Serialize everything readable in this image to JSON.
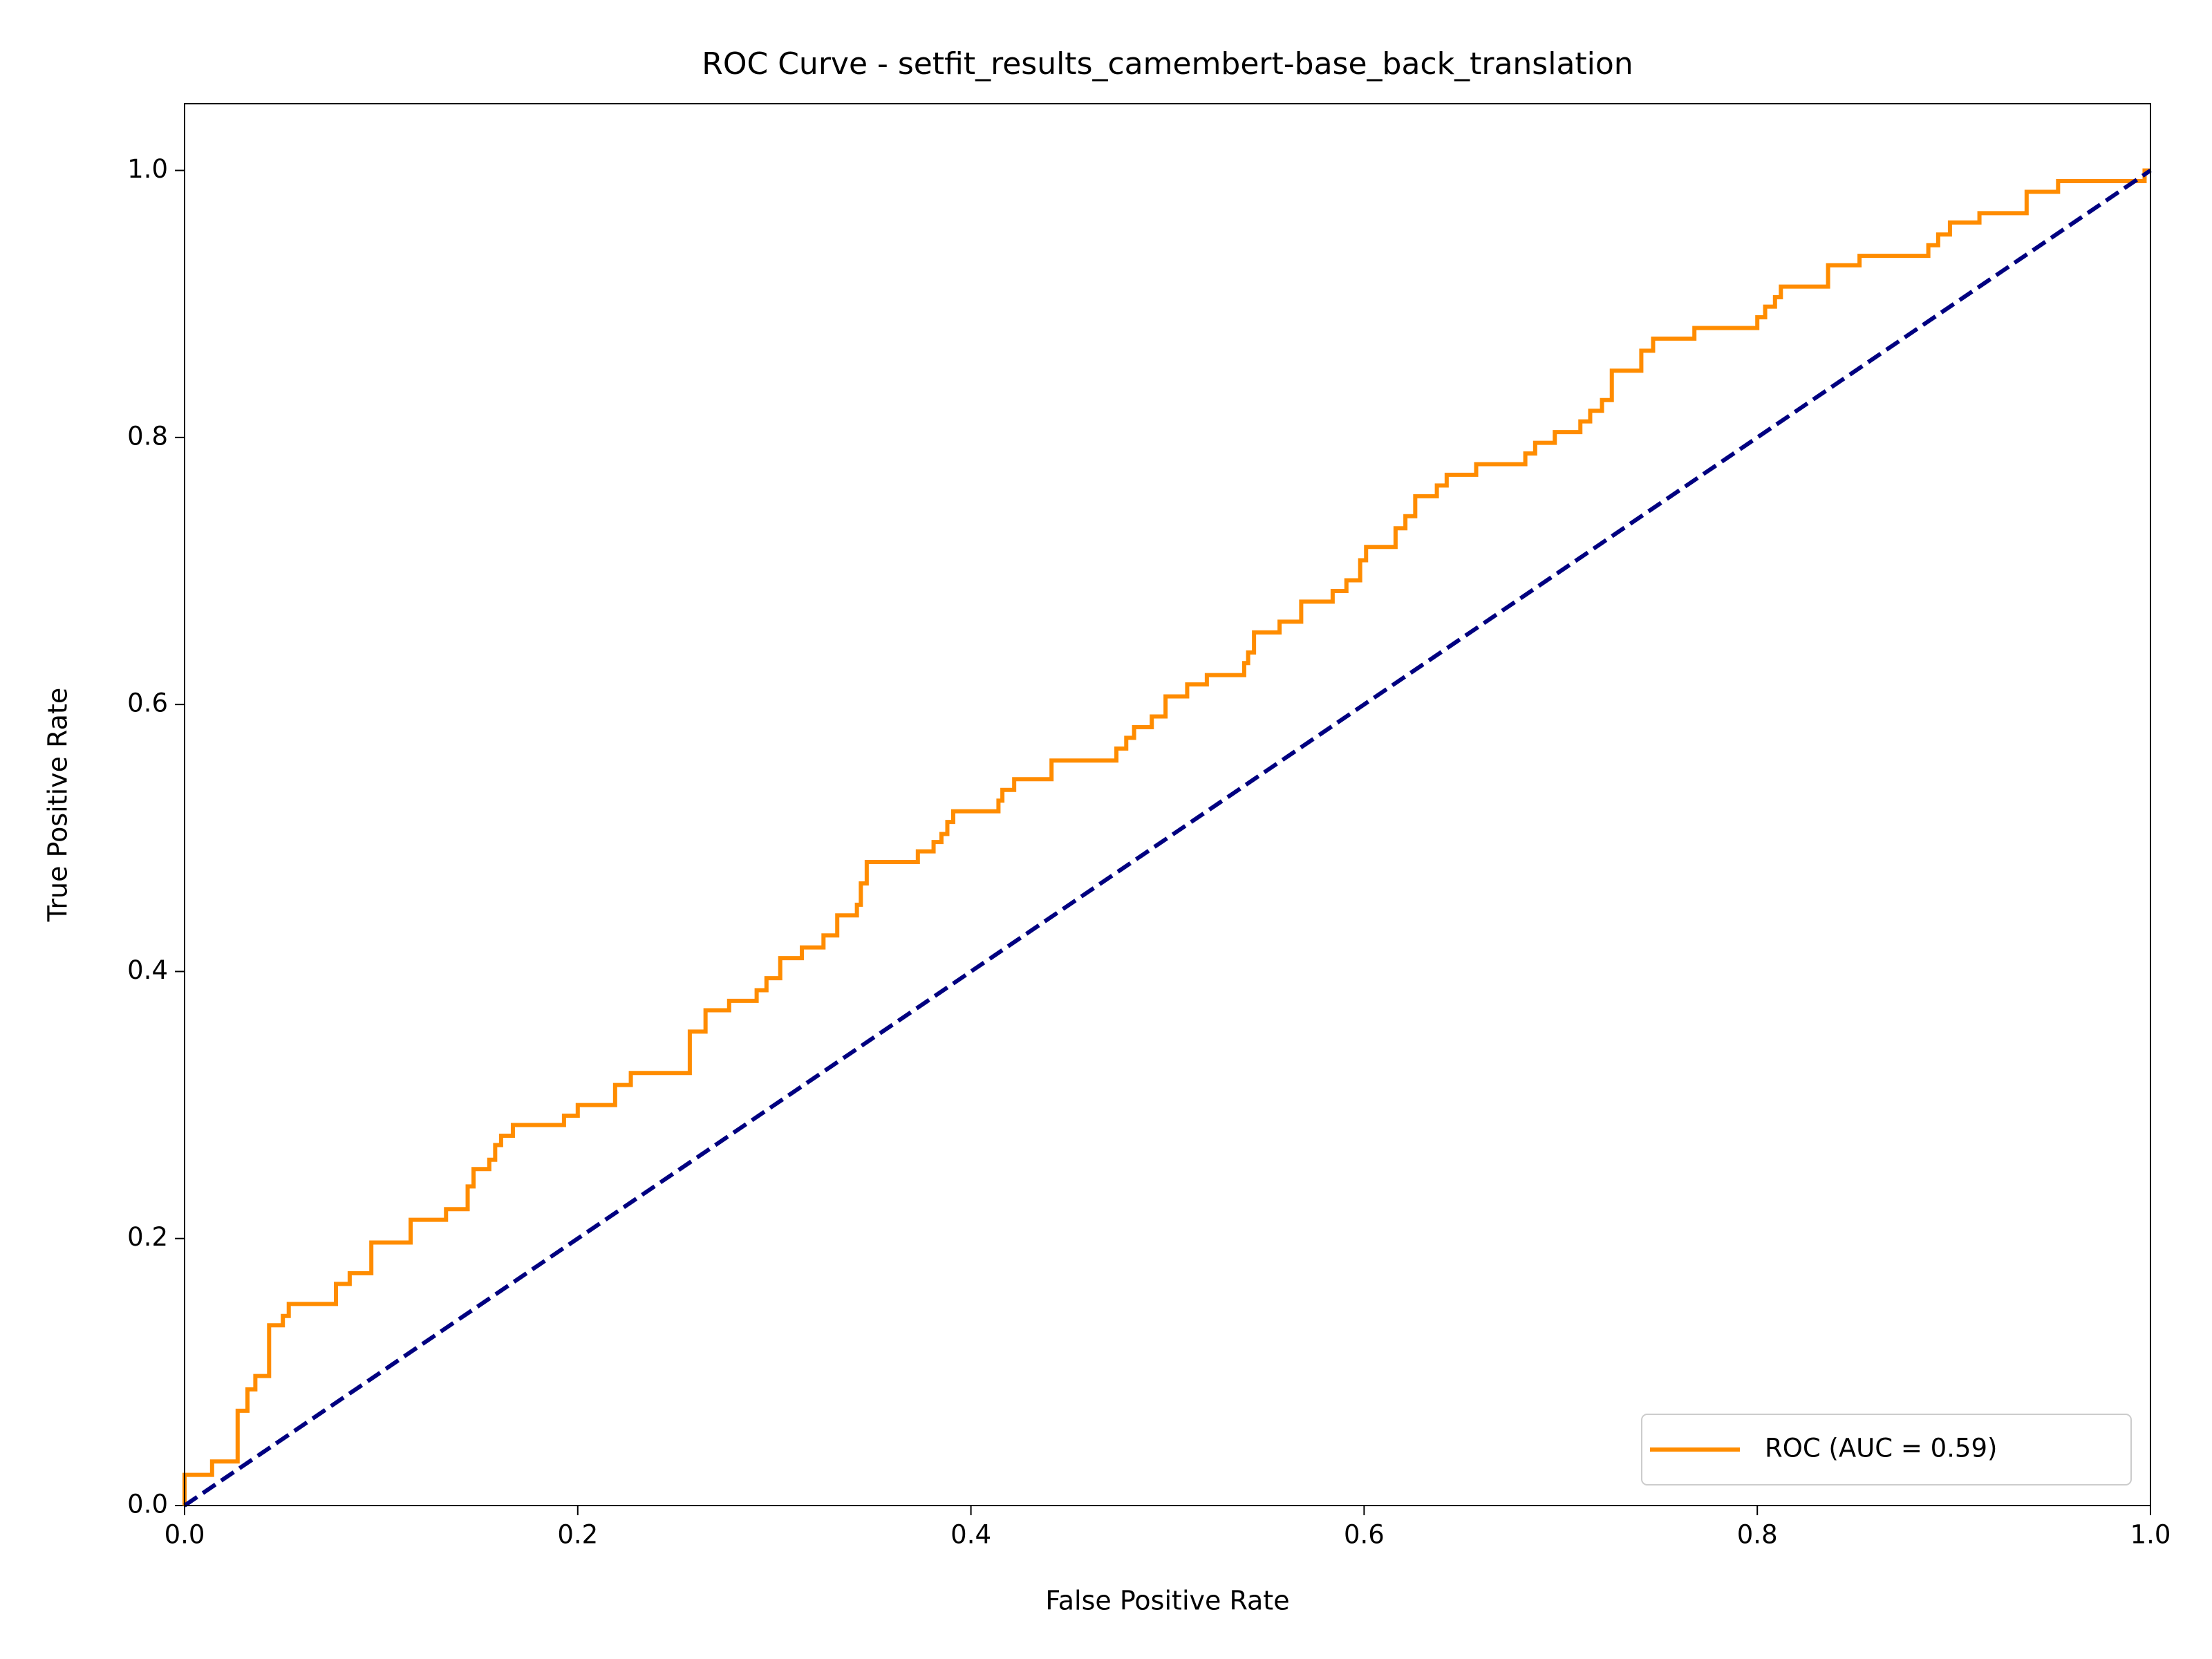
{
  "chart_data": {
    "type": "line",
    "title": "ROC Curve - setfit_results_camembert-base_back_translation",
    "xlabel": "False Positive Rate",
    "ylabel": "True Positive Rate",
    "xlim": [
      0,
      1
    ],
    "ylim": [
      0,
      1.05
    ],
    "xticks": [
      {
        "value": 0,
        "label": "0.0"
      },
      0.2,
      0.4,
      0.6,
      0.8,
      {
        "value": 1,
        "label": "1.0"
      }
    ],
    "yticks": [
      {
        "value": 0,
        "label": "0.0"
      },
      0.2,
      0.4,
      0.6,
      0.8,
      {
        "value": 1,
        "label": "1.0"
      }
    ],
    "legend": "lower right",
    "series": [
      {
        "name": "ROC (AUC = 0.59)",
        "color": "#ff8c00",
        "linestyle": "solid",
        "x": [
          0,
          0,
          0.014,
          0.014,
          0.027,
          0.027,
          0.032,
          0.032,
          0.036,
          0.036,
          0.043,
          0.043,
          0.05,
          0.05,
          0.053,
          0.053,
          0.077,
          0.077,
          0.084,
          0.084,
          0.095,
          0.095,
          0.115,
          0.115,
          0.133,
          0.133,
          0.144,
          0.144,
          0.147,
          0.147,
          0.155,
          0.155,
          0.158,
          0.158,
          0.161,
          0.161,
          0.167,
          0.167,
          0.193,
          0.193,
          0.2,
          0.2,
          0.219,
          0.219,
          0.227,
          0.227,
          0.257,
          0.257,
          0.265,
          0.265,
          0.277,
          0.277,
          0.291,
          0.291,
          0.296,
          0.296,
          0.303,
          0.303,
          0.314,
          0.314,
          0.325,
          0.325,
          0.332,
          0.332,
          0.342,
          0.342,
          0.344,
          0.344,
          0.347,
          0.347,
          0.373,
          0.373,
          0.381,
          0.381,
          0.385,
          0.385,
          0.388,
          0.388,
          0.391,
          0.391,
          0.414,
          0.414,
          0.416,
          0.416,
          0.422,
          0.422,
          0.441,
          0.441,
          0.474,
          0.474,
          0.479,
          0.479,
          0.483,
          0.483,
          0.492,
          0.492,
          0.499,
          0.499,
          0.51,
          0.51,
          0.52,
          0.52,
          0.539,
          0.539,
          0.541,
          0.541,
          0.544,
          0.544,
          0.557,
          0.557,
          0.568,
          0.568,
          0.584,
          0.584,
          0.591,
          0.591,
          0.598,
          0.598,
          0.601,
          0.601,
          0.616,
          0.616,
          0.621,
          0.621,
          0.626,
          0.626,
          0.637,
          0.637,
          0.642,
          0.642,
          0.657,
          0.657,
          0.682,
          0.682,
          0.687,
          0.687,
          0.697,
          0.697,
          0.71,
          0.71,
          0.715,
          0.715,
          0.721,
          0.721,
          0.726,
          0.726,
          0.741,
          0.741,
          0.747,
          0.747,
          0.768,
          0.768,
          0.8,
          0.8,
          0.804,
          0.804,
          0.809,
          0.809,
          0.812,
          0.812,
          0.836,
          0.836,
          0.852,
          0.852,
          0.887,
          0.887,
          0.892,
          0.892,
          0.898,
          0.898,
          0.913,
          0.913,
          0.937,
          0.937,
          0.953,
          0.953,
          0.997,
          0.997,
          1
        ],
        "values": [
          0,
          0.023,
          0.023,
          0.033,
          0.033,
          0.071,
          0.071,
          0.087,
          0.087,
          0.097,
          0.097,
          0.135,
          0.135,
          0.142,
          0.142,
          0.151,
          0.151,
          0.166,
          0.166,
          0.174,
          0.174,
          0.197,
          0.197,
          0.214,
          0.214,
          0.222,
          0.222,
          0.239,
          0.239,
          0.252,
          0.252,
          0.259,
          0.259,
          0.27,
          0.27,
          0.277,
          0.277,
          0.285,
          0.285,
          0.292,
          0.292,
          0.3,
          0.3,
          0.315,
          0.315,
          0.324,
          0.324,
          0.355,
          0.355,
          0.371,
          0.371,
          0.378,
          0.378,
          0.386,
          0.386,
          0.395,
          0.395,
          0.41,
          0.41,
          0.418,
          0.418,
          0.427,
          0.427,
          0.442,
          0.442,
          0.45,
          0.45,
          0.466,
          0.466,
          0.482,
          0.482,
          0.49,
          0.49,
          0.497,
          0.497,
          0.503,
          0.503,
          0.512,
          0.512,
          0.52,
          0.52,
          0.528,
          0.528,
          0.536,
          0.536,
          0.544,
          0.544,
          0.558,
          0.558,
          0.567,
          0.567,
          0.575,
          0.575,
          0.583,
          0.583,
          0.591,
          0.591,
          0.606,
          0.606,
          0.615,
          0.615,
          0.622,
          0.622,
          0.631,
          0.631,
          0.639,
          0.639,
          0.654,
          0.654,
          0.662,
          0.662,
          0.677,
          0.677,
          0.685,
          0.685,
          0.693,
          0.693,
          0.708,
          0.708,
          0.718,
          0.718,
          0.732,
          0.732,
          0.741,
          0.741,
          0.756,
          0.756,
          0.764,
          0.764,
          0.772,
          0.772,
          0.78,
          0.78,
          0.788,
          0.788,
          0.796,
          0.796,
          0.804,
          0.804,
          0.812,
          0.812,
          0.82,
          0.82,
          0.828,
          0.828,
          0.85,
          0.85,
          0.865,
          0.865,
          0.874,
          0.874,
          0.882,
          0.882,
          0.89,
          0.89,
          0.898,
          0.898,
          0.905,
          0.905,
          0.913,
          0.913,
          0.929,
          0.929,
          0.936,
          0.936,
          0.944,
          0.944,
          0.952,
          0.952,
          0.961,
          0.961,
          0.968,
          0.968,
          0.984,
          0.984,
          0.992,
          0.992,
          1,
          1
        ]
      },
      {
        "color": "#000080",
        "linestyle": "dashed",
        "x": [
          0,
          1
        ],
        "values": [
          0,
          1
        ]
      }
    ]
  }
}
